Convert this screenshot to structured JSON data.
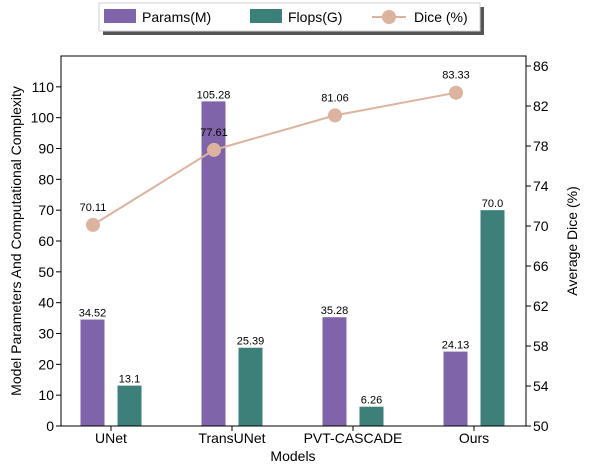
{
  "chart_data": {
    "type": "bar",
    "categories": [
      "UNet",
      "TransUNet",
      "PVT-CASCADE",
      "Ours"
    ],
    "series": [
      {
        "name": "Params(M)",
        "values": [
          34.52,
          105.28,
          35.28,
          24.13
        ],
        "value_labels": [
          "34.52",
          "105.28",
          "35.28",
          "24.13"
        ],
        "color": "#8064a9",
        "axis": "left",
        "kind": "bar"
      },
      {
        "name": "Flops(G)",
        "values": [
          13.1,
          25.39,
          6.26,
          70.0
        ],
        "value_labels": [
          "13.1",
          "25.39",
          "6.26",
          "70.0"
        ],
        "color": "#3c8079",
        "axis": "left",
        "kind": "bar"
      },
      {
        "name": "Dice (%)",
        "values": [
          70.11,
          77.61,
          81.06,
          83.33
        ],
        "value_labels": [
          "70.11",
          "77.61",
          "81.06",
          "83.33"
        ],
        "color": "#dbb39f",
        "axis": "right",
        "kind": "line"
      }
    ],
    "xlabel": "Models",
    "ylabel": "Model Parameters And Computational Complexity",
    "y2label": "Average Dice (%)",
    "ylim": [
      0,
      120
    ],
    "yticks": [
      0,
      10,
      20,
      30,
      40,
      50,
      60,
      70,
      80,
      90,
      100,
      110
    ],
    "y2lim": [
      50,
      87
    ],
    "y2ticks": [
      50,
      54,
      58,
      62,
      66,
      70,
      74,
      78,
      82,
      86
    ],
    "legend_position": "top-center",
    "grid": false
  }
}
